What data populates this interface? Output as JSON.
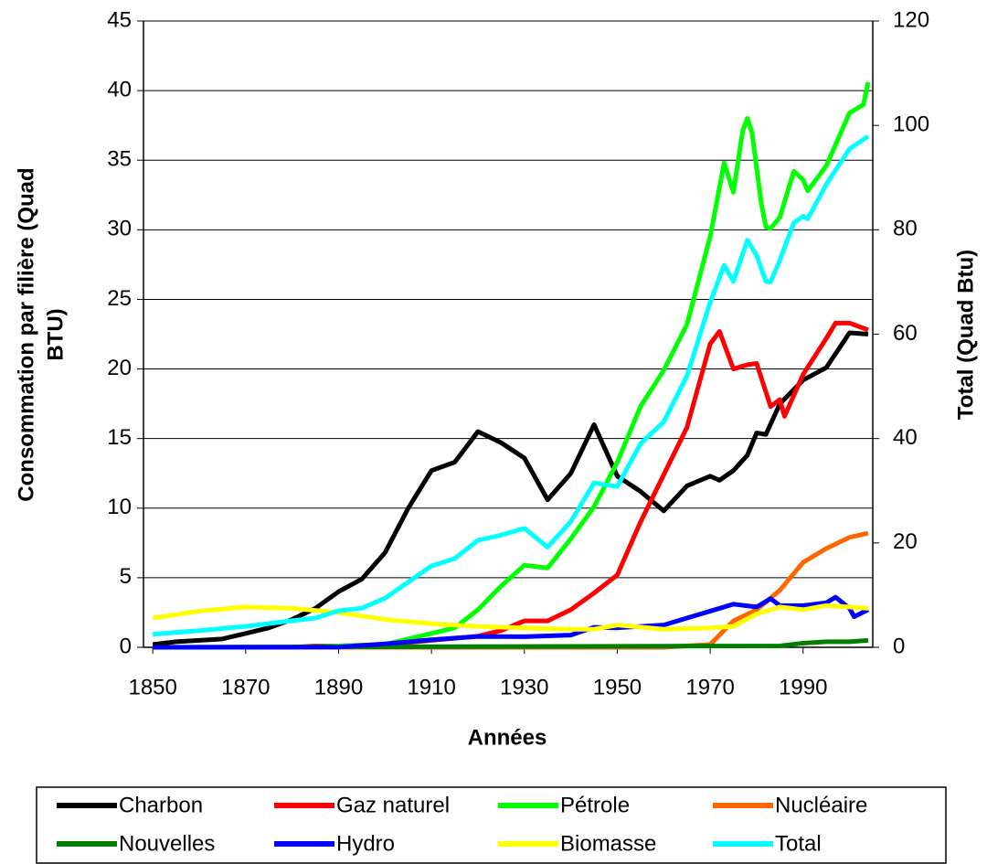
{
  "chart_data": {
    "type": "line",
    "xlabel": "Années",
    "ylabel": [
      "Consommation par filière (Quad",
      "BTU)"
    ],
    "y2label": "Total (Quad Btu)",
    "xlim": [
      1848,
      2005
    ],
    "xticks": [
      1850,
      1870,
      1890,
      1910,
      1930,
      1950,
      1970,
      1990
    ],
    "ylim": [
      0,
      45
    ],
    "yticks": [
      0,
      5,
      10,
      15,
      20,
      25,
      30,
      35,
      40,
      45
    ],
    "y2lim": [
      0,
      120
    ],
    "y2ticks": [
      0,
      20,
      40,
      60,
      80,
      100,
      120
    ],
    "grid": true,
    "legend": "bottom",
    "series": [
      {
        "name": "Charbon",
        "color": "#000000",
        "x": [
          1850,
          1855,
          1860,
          1865,
          1870,
          1875,
          1880,
          1885,
          1890,
          1895,
          1900,
          1905,
          1910,
          1915,
          1920,
          1925,
          1930,
          1935,
          1940,
          1945,
          1950,
          1955,
          1960,
          1965,
          1970,
          1972,
          1975,
          1978,
          1980,
          1982,
          1985,
          1990,
          1995,
          2000,
          2004
        ],
        "values": [
          0.2,
          0.4,
          0.5,
          0.6,
          1.0,
          1.4,
          2.0,
          2.8,
          4.0,
          4.9,
          6.8,
          10.0,
          12.7,
          13.3,
          15.5,
          14.7,
          13.6,
          10.6,
          12.5,
          16.0,
          12.3,
          11.2,
          9.8,
          11.6,
          12.3,
          12.0,
          12.7,
          13.8,
          15.4,
          15.3,
          17.5,
          19.2,
          20.1,
          22.6,
          22.5
        ]
      },
      {
        "name": "Gaz naturel",
        "color": "#ff0000",
        "x": [
          1850,
          1880,
          1885,
          1890,
          1900,
          1910,
          1920,
          1925,
          1930,
          1935,
          1940,
          1945,
          1950,
          1955,
          1960,
          1965,
          1970,
          1972,
          1975,
          1978,
          1980,
          1983,
          1985,
          1986,
          1990,
          1995,
          1997,
          2000,
          2004
        ],
        "values": [
          0,
          0,
          0.1,
          0.1,
          0.2,
          0.5,
          0.8,
          1.2,
          1.9,
          1.9,
          2.7,
          3.9,
          5.2,
          9,
          12.4,
          15.8,
          21.8,
          22.7,
          20,
          20.3,
          20.4,
          17.3,
          17.8,
          16.6,
          19.6,
          22.2,
          23.3,
          23.3,
          22.8
        ]
      },
      {
        "name": "Pétrole",
        "color": "#00ff00",
        "x": [
          1850,
          1880,
          1890,
          1900,
          1905,
          1910,
          1915,
          1920,
          1925,
          1930,
          1935,
          1940,
          1945,
          1950,
          1955,
          1960,
          1965,
          1970,
          1973,
          1975,
          1977,
          1978,
          1979,
          1981,
          1982,
          1983,
          1985,
          1988,
          1990,
          1991,
          1995,
          2000,
          2003,
          2004
        ],
        "values": [
          0,
          0,
          0.1,
          0.2,
          0.6,
          1.0,
          1.4,
          2.7,
          4.4,
          5.9,
          5.7,
          7.8,
          10.1,
          13.3,
          17.3,
          19.9,
          23.2,
          29.5,
          34.8,
          32.7,
          37.1,
          38,
          37,
          31.9,
          30.2,
          30.1,
          30.9,
          34.2,
          33.6,
          32.8,
          34.6,
          38.4,
          39.0,
          40.6
        ]
      },
      {
        "name": "Nucléaire",
        "color": "#ff6600",
        "x": [
          1850,
          1957,
          1960,
          1970,
          1975,
          1980,
          1985,
          1990,
          1995,
          2000,
          2004
        ],
        "values": [
          0,
          0,
          0,
          0.2,
          1.9,
          2.7,
          4.1,
          6.1,
          7.1,
          7.9,
          8.2
        ]
      },
      {
        "name": "Nouvelles",
        "color": "#008000",
        "x": [
          1850,
          1985,
          1990,
          1995,
          2000,
          2004
        ],
        "values": [
          0,
          0.1,
          0.3,
          0.4,
          0.4,
          0.5
        ]
      },
      {
        "name": "Hydro",
        "color": "#0000ff",
        "x": [
          1850,
          1890,
          1900,
          1910,
          1920,
          1930,
          1940,
          1945,
          1950,
          1960,
          1970,
          1975,
          1980,
          1983,
          1985,
          1990,
          1995,
          1997,
          2000,
          2001,
          2004
        ],
        "values": [
          0,
          0.02,
          0.25,
          0.54,
          0.78,
          0.76,
          0.88,
          1.44,
          1.4,
          1.6,
          2.6,
          3.1,
          2.9,
          3.5,
          3.0,
          3.0,
          3.2,
          3.6,
          2.8,
          2.2,
          2.7
        ]
      },
      {
        "name": "Biomasse",
        "color": "#ffff00",
        "x": [
          1850,
          1860,
          1870,
          1880,
          1890,
          1900,
          1910,
          1920,
          1930,
          1940,
          1945,
          1950,
          1960,
          1970,
          1975,
          1980,
          1985,
          1990,
          1995,
          2000,
          2004
        ],
        "values": [
          2.1,
          2.6,
          2.9,
          2.8,
          2.5,
          2.0,
          1.7,
          1.5,
          1.4,
          1.3,
          1.3,
          1.6,
          1.3,
          1.4,
          1.5,
          2.4,
          2.9,
          2.7,
          3.0,
          2.9,
          2.8
        ]
      },
      {
        "name": "Total",
        "color": "#00ffff",
        "axis": "y2",
        "x": [
          1850,
          1860,
          1870,
          1880,
          1885,
          1890,
          1895,
          1900,
          1905,
          1910,
          1915,
          1920,
          1925,
          1930,
          1935,
          1940,
          1945,
          1950,
          1955,
          1960,
          1965,
          1970,
          1973,
          1975,
          1978,
          1980,
          1982,
          1983,
          1985,
          1988,
          1990,
          1991,
          1995,
          2000,
          2004
        ],
        "values": [
          2.5,
          3.2,
          4.0,
          5.1,
          5.6,
          7.0,
          7.5,
          9.4,
          12.5,
          15.6,
          17.0,
          20.5,
          21.5,
          22.8,
          19.2,
          24.1,
          31.5,
          30.8,
          39.0,
          43.2,
          52.0,
          66.1,
          73.2,
          70.1,
          78.0,
          75.1,
          70.1,
          70.0,
          74.2,
          81.3,
          82.6,
          82.1,
          88.7,
          95.5,
          97.9
        ]
      }
    ]
  }
}
